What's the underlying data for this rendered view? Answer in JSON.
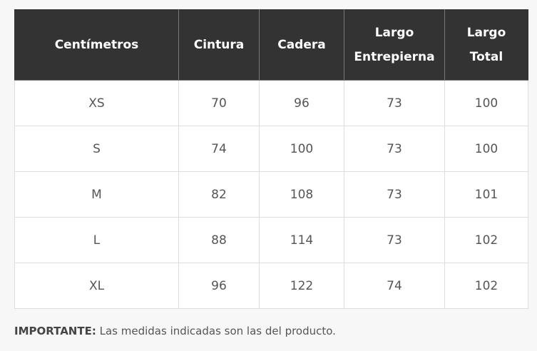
{
  "table": {
    "headers": [
      [
        "Centímetros"
      ],
      [
        "Cintura"
      ],
      [
        "Cadera"
      ],
      [
        "Largo",
        "Entrepierna"
      ],
      [
        "Largo",
        "Total"
      ]
    ],
    "rows": [
      [
        "XS",
        "70",
        "96",
        "73",
        "100"
      ],
      [
        "S",
        "74",
        "100",
        "73",
        "100"
      ],
      [
        "M",
        "82",
        "108",
        "73",
        "101"
      ],
      [
        "L",
        "88",
        "114",
        "73",
        "102"
      ],
      [
        "XL",
        "96",
        "122",
        "74",
        "102"
      ]
    ]
  },
  "note": {
    "label": "IMPORTANTE:",
    "text": " Las medidas indicadas son las del producto."
  }
}
